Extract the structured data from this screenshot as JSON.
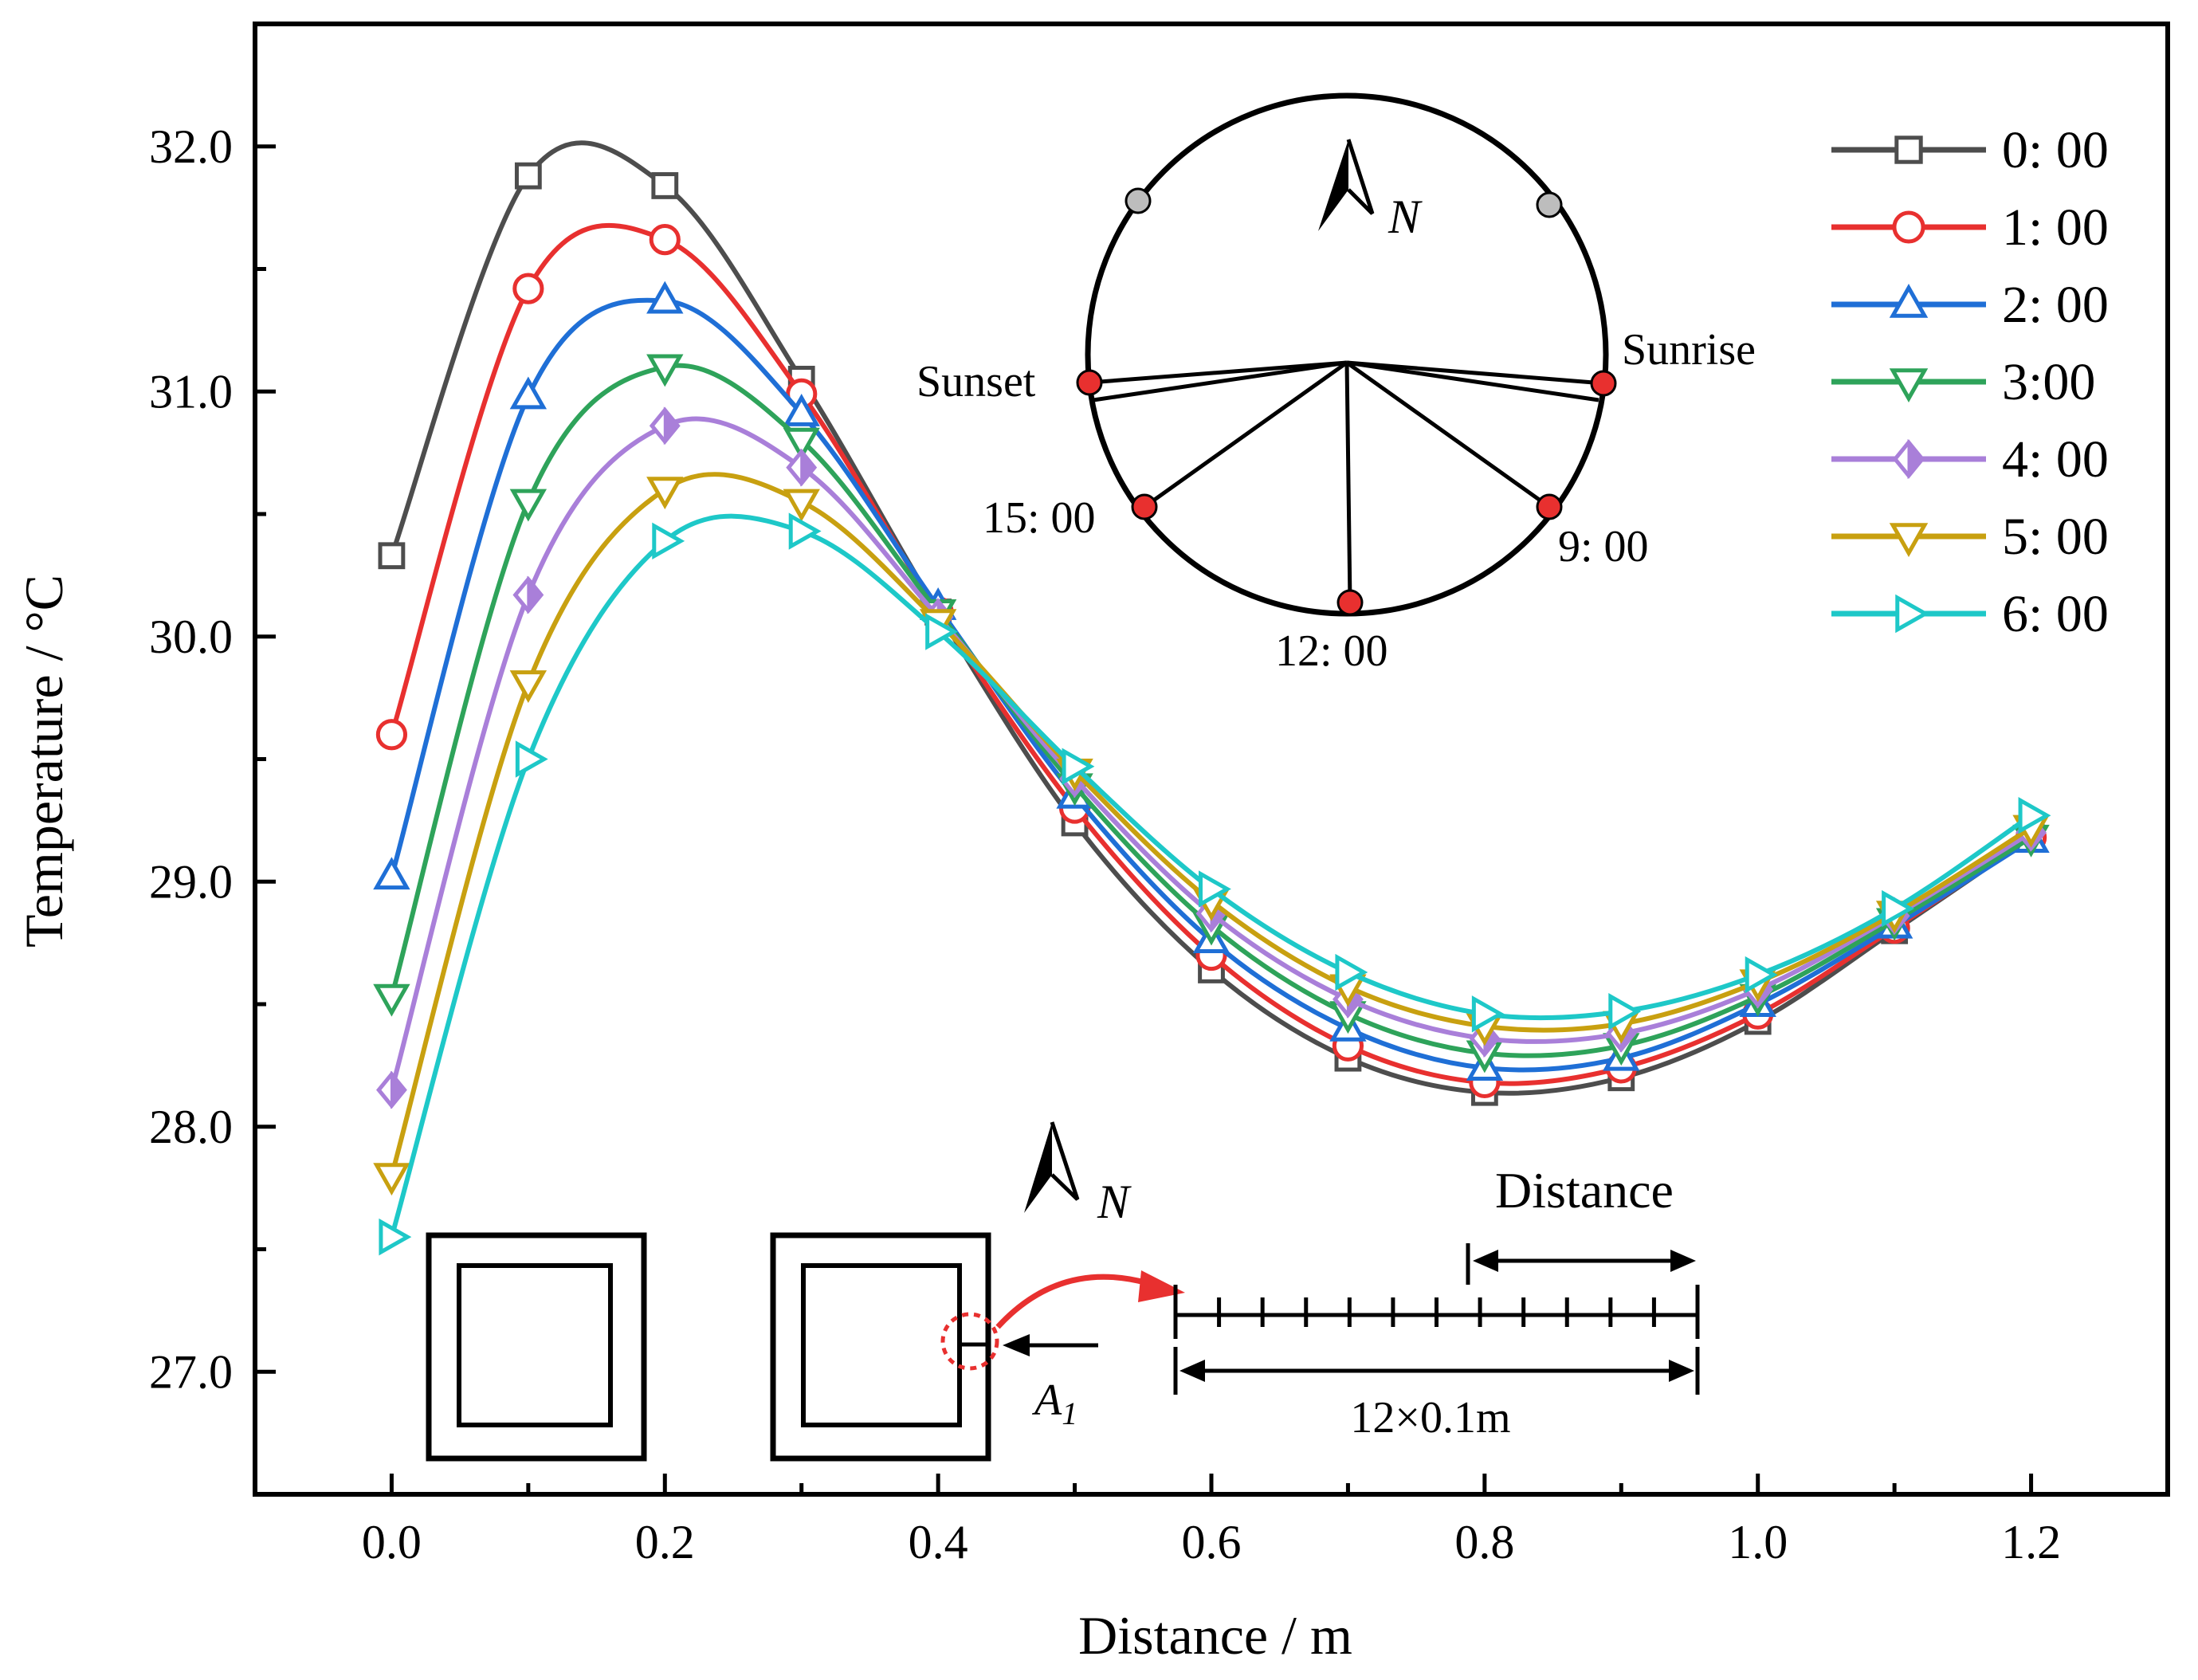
{
  "chart_data": {
    "type": "line",
    "xlabel": "Distance / m",
    "ylabel": "Temperature / °C",
    "xlim": [
      -0.1,
      1.3
    ],
    "ylim": [
      26.5,
      32.5
    ],
    "x_ticks": [
      0.0,
      0.2,
      0.4,
      0.6,
      0.8,
      1.0,
      1.2
    ],
    "x_tick_labels": [
      "0.0",
      "0.2",
      "0.4",
      "0.6",
      "0.8",
      "1.0",
      "1.2"
    ],
    "y_ticks": [
      27.0,
      28.0,
      29.0,
      30.0,
      31.0,
      32.0
    ],
    "y_tick_labels": [
      "27.0",
      "28.0",
      "29.0",
      "30.0",
      "31.0",
      "32.0"
    ],
    "grid": false,
    "legend_position": "top-right",
    "x": [
      0.0,
      0.1,
      0.2,
      0.3,
      0.4,
      0.5,
      0.6,
      0.7,
      0.8,
      0.9,
      1.0,
      1.1,
      1.2
    ],
    "series": [
      {
        "name": "0: 00",
        "color": "#4d4d4d",
        "marker": "square",
        "values": [
          30.33,
          31.88,
          31.84,
          31.05,
          30.1,
          29.24,
          28.64,
          28.28,
          28.14,
          28.2,
          28.43,
          28.8,
          29.18
        ]
      },
      {
        "name": "1: 00",
        "color": "#e8302f",
        "marker": "circle",
        "values": [
          29.6,
          31.42,
          31.62,
          30.99,
          30.1,
          29.3,
          28.7,
          28.33,
          28.18,
          28.24,
          28.46,
          28.81,
          29.18
        ]
      },
      {
        "name": "2: 00",
        "color": "#1f6fd6",
        "marker": "triangle-up",
        "values": [
          29.02,
          30.98,
          31.37,
          30.91,
          30.12,
          29.35,
          28.76,
          28.4,
          28.24,
          28.28,
          28.5,
          28.82,
          29.17
        ]
      },
      {
        "name": "3:00",
        "color": "#2ea35a",
        "marker": "triangle-down",
        "values": [
          28.53,
          30.55,
          31.1,
          30.8,
          30.1,
          29.39,
          28.82,
          28.46,
          28.3,
          28.33,
          28.53,
          28.84,
          29.18
        ]
      },
      {
        "name": "4: 00",
        "color": "#a97fd9",
        "marker": "diamond-half",
        "values": [
          28.15,
          30.17,
          30.86,
          30.69,
          30.08,
          29.42,
          28.87,
          28.52,
          28.36,
          28.38,
          28.56,
          28.86,
          29.2
        ]
      },
      {
        "name": "5: 00",
        "color": "#c8a010",
        "marker": "triangle-down",
        "values": [
          27.8,
          29.81,
          30.6,
          30.55,
          30.06,
          29.45,
          28.92,
          28.57,
          28.41,
          28.42,
          28.59,
          28.87,
          29.22
        ]
      },
      {
        "name": "6: 00",
        "color": "#1ec8c8",
        "marker": "triangle-right",
        "values": [
          27.55,
          29.5,
          30.39,
          30.43,
          30.02,
          29.47,
          28.97,
          28.63,
          28.46,
          28.47,
          28.62,
          28.89,
          29.27
        ]
      }
    ],
    "annotations": {
      "compass": {
        "north": "N",
        "points": [
          {
            "label": "Sunset",
            "type": "red"
          },
          {
            "label": "Sunrise",
            "type": "red"
          },
          {
            "label": "15: 00",
            "type": "red"
          },
          {
            "label": "9: 00",
            "type": "red"
          },
          {
            "label": "12: 00",
            "type": "red"
          },
          {
            "label": "",
            "type": "gray"
          },
          {
            "label": "",
            "type": "gray"
          }
        ]
      },
      "schematic": {
        "north": "N",
        "point_label_main": "A",
        "point_label_sub": "1",
        "distance_label": "Distance",
        "span_label": "12×0.1m"
      }
    }
  }
}
